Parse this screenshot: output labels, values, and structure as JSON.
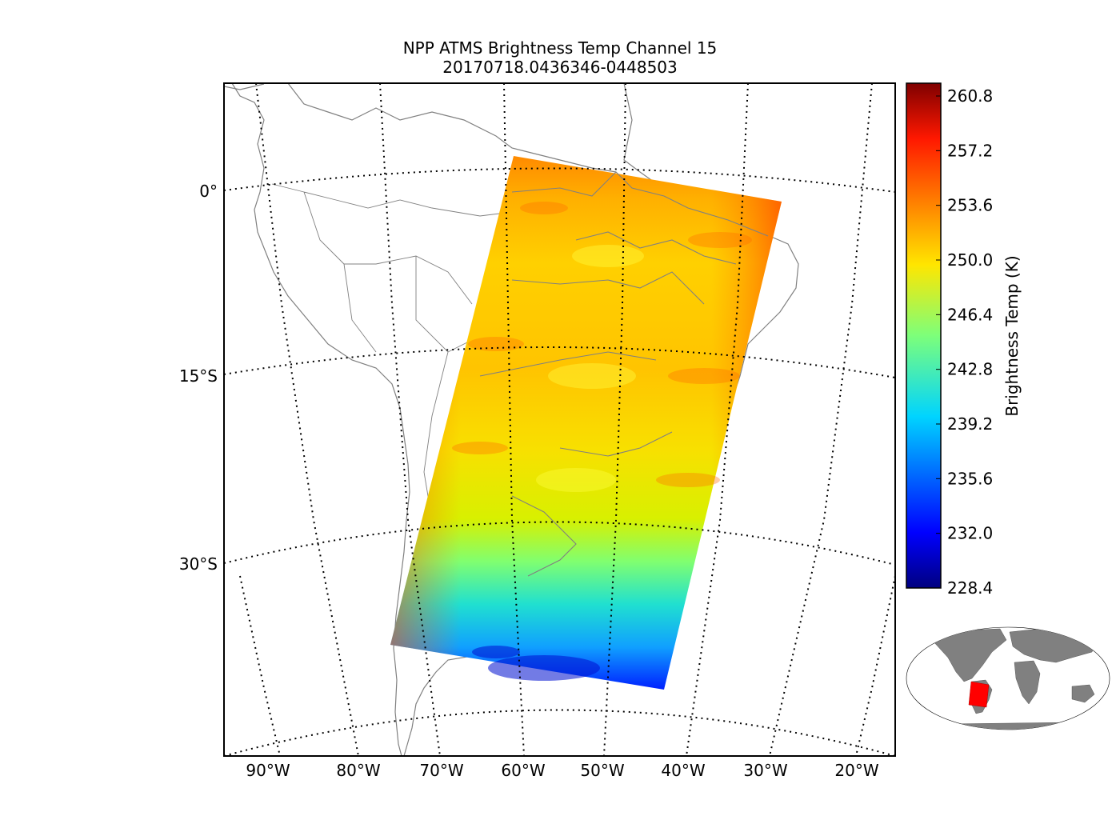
{
  "title": {
    "line1": "NPP ATMS Brightness Temp Channel 15",
    "line2": "20170718.0436346-0448503"
  },
  "map": {
    "lat_labels": [
      "0°",
      "15°S",
      "30°S"
    ],
    "lon_labels": [
      "90°W",
      "80°W",
      "70°W",
      "60°W",
      "50°W",
      "40°W",
      "30°W",
      "20°W"
    ],
    "coastline_color": "#808080",
    "gridline_style": "dotted"
  },
  "swath": {
    "description_colors": {
      "north": "#ff8c00",
      "center": "#f0f000",
      "south": "#00a0ff",
      "southmost": "#0018ff"
    }
  },
  "colorbar": {
    "label": "Brightness Temp (K)",
    "ticks": [
      "260.8",
      "257.2",
      "253.6",
      "250.0",
      "246.4",
      "242.8",
      "239.2",
      "235.6",
      "232.0",
      "228.4"
    ],
    "colormap": "jet"
  },
  "inset": {
    "description": "world-locator",
    "land_color": "#808080",
    "highlight_color": "#ff0000"
  }
}
